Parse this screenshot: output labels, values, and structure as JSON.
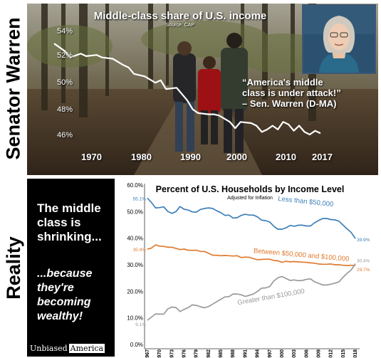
{
  "top": {
    "side_label": "Senator Warren",
    "title": "Middle-class share of U.S. income",
    "source": "Source: CAP",
    "quote_lines": [
      "“America's middle",
      "class is under attack!”",
      "– Sen. Warren (D-MA)"
    ],
    "y_ticks": [
      "54%",
      "52%",
      "50%",
      "48%",
      "46%"
    ],
    "x_ticks": [
      "1970",
      "1980",
      "1990",
      "2000",
      "2010",
      "2017"
    ]
  },
  "bottom": {
    "side_label": "Reality",
    "claim": "The middle class is shrinking...",
    "reason": "...because they're becoming wealthy!",
    "brand_part1": "Unbiased",
    "brand_part2": "America"
  },
  "chart_data": [
    {
      "type": "line",
      "title": "Middle-class share of U.S. income",
      "subtitle": "Source: CAP",
      "xlabel": "",
      "ylabel": "",
      "xlim": [
        1967,
        2017
      ],
      "ylim": [
        45.2,
        54.8
      ],
      "y_ticks": [
        54,
        52,
        50,
        48,
        46
      ],
      "x_ticks": [
        1970,
        1980,
        1990,
        2000,
        2010,
        2017
      ],
      "grid": false,
      "background": "photo",
      "series": [
        {
          "color": "#ffffff",
          "x": [
            1967,
            1969,
            1970,
            1972,
            1973,
            1975,
            1976,
            1978,
            1980,
            1981,
            1982,
            1984,
            1986,
            1987,
            1988,
            1990,
            1991,
            1992,
            1993,
            1994,
            1996,
            1997,
            1998,
            2000,
            2001,
            2002,
            2004,
            2005,
            2006,
            2007,
            2008,
            2009,
            2010,
            2011,
            2012,
            2013,
            2014,
            2015,
            2016,
            2017
          ],
          "values": [
            53.2,
            52.6,
            52.1,
            52.4,
            52.2,
            52.3,
            52.1,
            52.0,
            51.5,
            51.3,
            50.8,
            50.6,
            50.1,
            50.3,
            49.6,
            49.7,
            49.2,
            48.7,
            48.0,
            47.7,
            47.6,
            47.6,
            47.5,
            47.0,
            46.5,
            47.0,
            46.9,
            46.7,
            46.2,
            46.4,
            46.7,
            46.4,
            47.0,
            46.8,
            46.3,
            46.7,
            46.2,
            46.0,
            46.3,
            46.1
          ]
        }
      ]
    },
    {
      "type": "line",
      "title": "Percent of U.S. Households by Income Level",
      "subtitle": "Adjusted for Inflation",
      "xlabel": "",
      "ylabel": "",
      "xlim": [
        1967,
        2018
      ],
      "ylim": [
        0,
        60
      ],
      "y_ticks": [
        "0.0%",
        "10.0%",
        "20.0%",
        "30.0%",
        "40.0%",
        "50.0%",
        "60.0%"
      ],
      "x_ticks": [
        1967,
        1970,
        1973,
        1976,
        1979,
        1982,
        1985,
        1988,
        1991,
        1994,
        1997,
        2000,
        2003,
        2006,
        2009,
        2012,
        2015,
        2018
      ],
      "grid": false,
      "series": [
        {
          "name": "Less than $50,000",
          "color": "#3d7fb8",
          "x": [
            1967,
            1968,
            1969,
            1970,
            1971,
            1972,
            1973,
            1974,
            1975,
            1976,
            1977,
            1978,
            1979,
            1980,
            1981,
            1982,
            1983,
            1984,
            1985,
            1986,
            1987,
            1988,
            1989,
            1990,
            1991,
            1992,
            1993,
            1994,
            1995,
            1996,
            1997,
            1998,
            1999,
            2000,
            2001,
            2002,
            2003,
            2004,
            2005,
            2006,
            2007,
            2008,
            2009,
            2010,
            2011,
            2012,
            2013,
            2014,
            2015,
            2016,
            2017,
            2018
          ],
          "values": [
            55.1,
            53.4,
            51.4,
            51.5,
            51.8,
            50.1,
            49.3,
            50.0,
            51.9,
            50.9,
            50.6,
            49.9,
            49.8,
            50.8,
            51.2,
            51.4,
            51.2,
            50.3,
            49.6,
            48.6,
            48.7,
            47.6,
            47.7,
            48.6,
            49.0,
            48.7,
            48.7,
            48.0,
            46.8,
            46.6,
            46.1,
            44.5,
            43.4,
            43.4,
            43.9,
            44.8,
            44.5,
            44.9,
            44.9,
            44.6,
            44.6,
            45.8,
            46.7,
            47.4,
            47.4,
            47.0,
            46.9,
            46.4,
            44.9,
            43.5,
            42.1,
            39.9
          ],
          "start_label": "55.1%",
          "end_label": "39.9%"
        },
        {
          "name": "Between $50,000 and $100,000",
          "color": "#e07a2e",
          "x": [
            1967,
            1968,
            1969,
            1970,
            1971,
            1972,
            1973,
            1974,
            1975,
            1976,
            1977,
            1978,
            1979,
            1980,
            1981,
            1982,
            1983,
            1984,
            1985,
            1986,
            1987,
            1988,
            1989,
            1990,
            1991,
            1992,
            1993,
            1994,
            1995,
            1996,
            1997,
            1998,
            1999,
            2000,
            2001,
            2002,
            2003,
            2004,
            2005,
            2006,
            2007,
            2008,
            2009,
            2010,
            2011,
            2012,
            2013,
            2014,
            2015,
            2016,
            2017,
            2018
          ],
          "values": [
            35.9,
            36.3,
            37.5,
            37.0,
            36.9,
            36.6,
            36.6,
            36.2,
            35.7,
            35.9,
            35.5,
            35.4,
            35.5,
            35.0,
            35.0,
            34.3,
            33.6,
            33.6,
            33.4,
            33.5,
            33.4,
            33.3,
            33.4,
            32.7,
            32.9,
            32.8,
            32.3,
            31.9,
            32.0,
            32.1,
            32.1,
            31.6,
            31.5,
            30.9,
            31.3,
            31.1,
            31.2,
            31.1,
            31.0,
            30.9,
            30.7,
            30.6,
            30.3,
            30.2,
            30.2,
            30.3,
            30.0,
            30.0,
            29.8,
            29.7,
            29.8,
            29.7
          ],
          "start_label": "35.9%",
          "end_label": "29.7%"
        },
        {
          "name": "Greater than $100,000",
          "color": "#9a9a9a",
          "x": [
            1967,
            1968,
            1969,
            1970,
            1971,
            1972,
            1973,
            1974,
            1975,
            1976,
            1977,
            1978,
            1979,
            1980,
            1981,
            1982,
            1983,
            1984,
            1985,
            1986,
            1987,
            1988,
            1989,
            1990,
            1991,
            1992,
            1993,
            1994,
            1995,
            1996,
            1997,
            1998,
            1999,
            2000,
            2001,
            2002,
            2003,
            2004,
            2005,
            2006,
            2007,
            2008,
            2009,
            2010,
            2011,
            2012,
            2013,
            2014,
            2015,
            2016,
            2017,
            2018
          ],
          "values": [
            9.1,
            10.3,
            11.5,
            11.4,
            11.4,
            13.4,
            14.1,
            13.9,
            12.4,
            13.2,
            13.9,
            14.9,
            14.7,
            14.2,
            13.8,
            14.3,
            15.2,
            16.1,
            17.0,
            17.9,
            18.0,
            19.0,
            19.0,
            18.7,
            18.1,
            18.5,
            19.0,
            20.0,
            21.2,
            21.3,
            21.8,
            23.9,
            25.1,
            25.6,
            24.8,
            24.1,
            24.3,
            24.0,
            24.1,
            24.5,
            24.7,
            23.6,
            23.0,
            22.4,
            22.4,
            22.7,
            23.1,
            23.6,
            25.3,
            26.8,
            28.1,
            30.4
          ],
          "start_label": "9.1%",
          "end_label": "30.4%"
        }
      ]
    }
  ],
  "colors": {
    "blue_series": "#3d7fb8",
    "orange_series": "#e07a2e",
    "gray_series": "#9a9a9a",
    "panel_black": "#000000",
    "warren_frame": "#3b5876"
  }
}
